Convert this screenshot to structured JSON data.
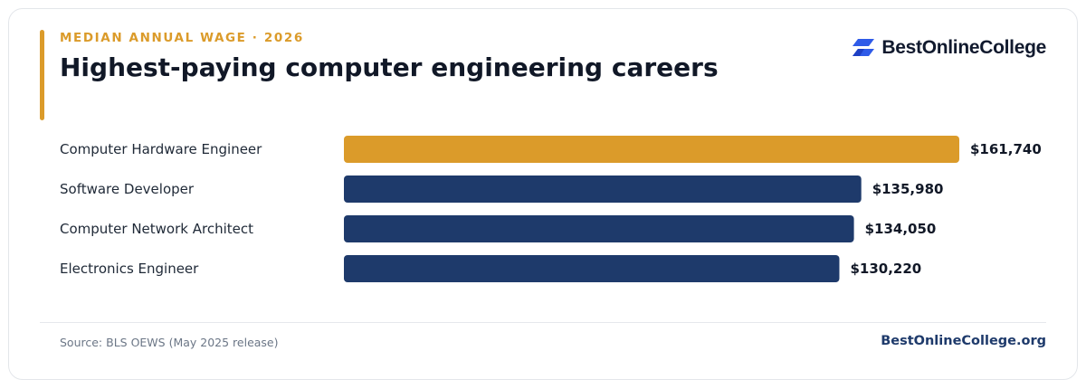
{
  "header": {
    "eyebrow": "MEDIAN ANNUAL WAGE · 2026",
    "title": "Highest-paying computer engineering careers"
  },
  "logo": {
    "icon": "bestonlinecollege-logo-icon",
    "text": "BestOnlineCollege"
  },
  "footer": {
    "source": "Source: BLS OEWS (May 2025 release)",
    "brand": "BestOnlineCollege.org"
  },
  "colors": {
    "accent": "#db9b2a",
    "bar_primary": "#1e3a6b",
    "highlight": "#db9b2a",
    "logo_blue": "#2f5be8"
  },
  "chart_data": {
    "type": "bar",
    "orientation": "horizontal",
    "title": "Highest-paying computer engineering careers",
    "categories": [
      "Computer Hardware Engineer",
      "Software Developer",
      "Computer Network Architect",
      "Electronics Engineer"
    ],
    "values": [
      161740,
      135980,
      134050,
      130220
    ],
    "value_labels": [
      "$161,740",
      "$135,980",
      "$134,050",
      "$130,220"
    ],
    "highlight_index": 0,
    "xlim": [
      0,
      161740
    ],
    "grid": false,
    "legend": "none"
  }
}
